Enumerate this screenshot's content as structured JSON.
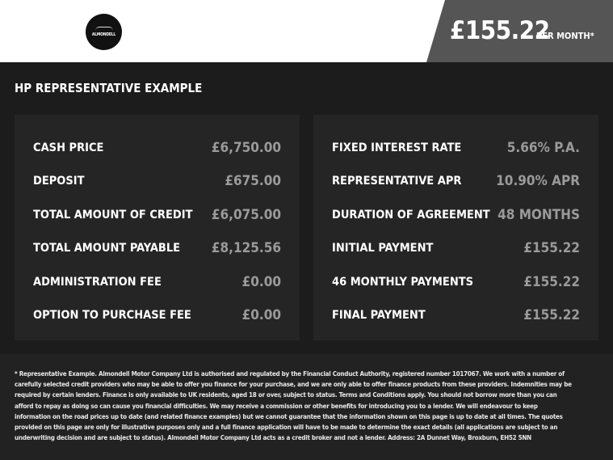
{
  "header": {
    "logo_text": "ALMONDELL",
    "price": "£155.22",
    "per_month": "PER MONTH*"
  },
  "title": "HP REPRESENTATIVE EXAMPLE",
  "left": [
    {
      "label": "CASH PRICE",
      "value": "£6,750.00"
    },
    {
      "label": "DEPOSIT",
      "value": "£675.00"
    },
    {
      "label": "TOTAL AMOUNT OF CREDIT",
      "value": "£6,075.00"
    },
    {
      "label": "TOTAL AMOUNT PAYABLE",
      "value": "£8,125.56"
    },
    {
      "label": "ADMINISTRATION FEE",
      "value": "£0.00"
    },
    {
      "label": "OPTION TO PURCHASE FEE",
      "value": "£0.00"
    }
  ],
  "right": [
    {
      "label": "FIXED INTEREST RATE",
      "value": "5.66% P.A."
    },
    {
      "label": "REPRESENTATIVE APR",
      "value": "10.90% APR"
    },
    {
      "label": "DURATION OF AGREEMENT",
      "value": "48 MONTHS"
    },
    {
      "label": "INITIAL PAYMENT",
      "value": "£155.22"
    },
    {
      "label": "46 MONTHLY PAYMENTS",
      "value": "£155.22"
    },
    {
      "label": "FINAL PAYMENT",
      "value": "£155.22"
    }
  ],
  "disclaimer": "* Representative Example. Almondell Motor Company Ltd is authorised and regulated by the Financial Conduct Authority, registered number 1017067. We work with a number of carefully selected credit providers who may be able to offer you finance for your purchase, and we are only able to offer finance products from these providers. Indemnities may be required by certain lenders. Finance is only available to UK residents, aged 18 or over, subject to status. Terms and Conditions apply. You should not borrow more than you can afford to repay as doing so can cause you financial difficulties. We may receive a commission or other benefits for introducing you to a lender. We will endeavour to keep information on the road prices up to date (and related finance examples) but we cannot guarantee that the information shown on this page is up to date at all times. The quotes provided on this page are only for illustrative purposes only and a full finance application will have to be made to determine the exact details (all applications are subject to an underwriting decision and are subject to status). Almondell Motor Company Ltd acts as a credit broker and not a lender. Address: 2A Dunnet Way, Broxburn, EH52 5NN"
}
